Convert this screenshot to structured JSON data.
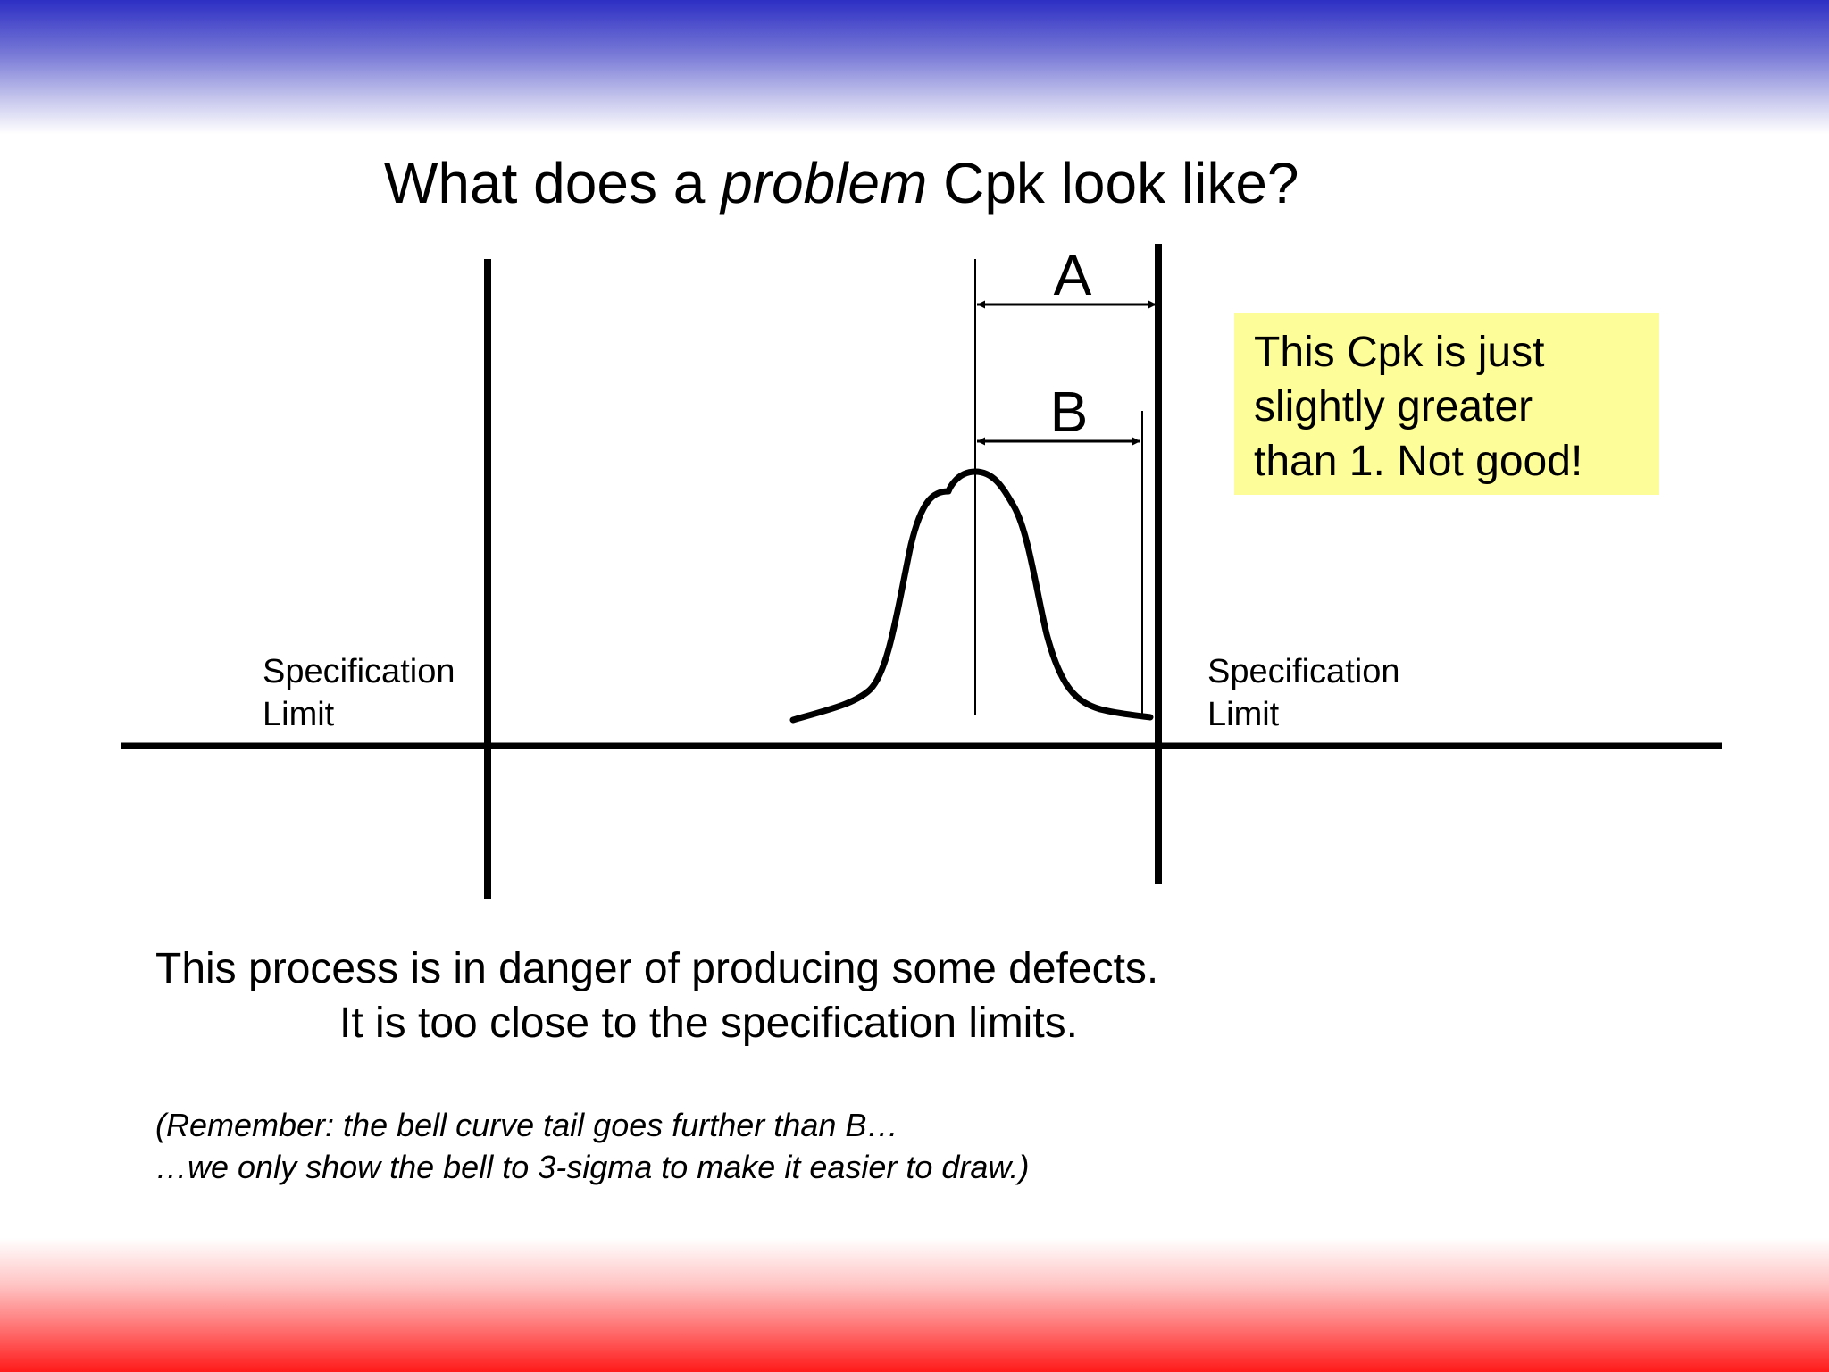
{
  "title": {
    "before": "What does a ",
    "emphasis": "problem",
    "after": " Cpk look like?"
  },
  "diagram": {
    "label_a": "A",
    "label_b": "B",
    "left_limit": {
      "line1": "Specification",
      "line2": "Limit"
    },
    "right_limit": {
      "line1": "Specification",
      "line2": "Limit"
    }
  },
  "note": {
    "lines": [
      "This Cpk is just",
      "slightly greater",
      "than 1.  Not good!"
    ],
    "background": "#fdfd99"
  },
  "caption": {
    "line1": "This process is in danger of producing some defects.",
    "line2": "It is too close to the specification limits."
  },
  "remark": {
    "line1": "(Remember: the bell curve tail goes further than B…",
    "line2": "…we only show the bell to 3-sigma to make it easier to draw.)"
  },
  "colors": {
    "top_band": "#2d2fc4",
    "bottom_band": "#ff1a1a"
  }
}
